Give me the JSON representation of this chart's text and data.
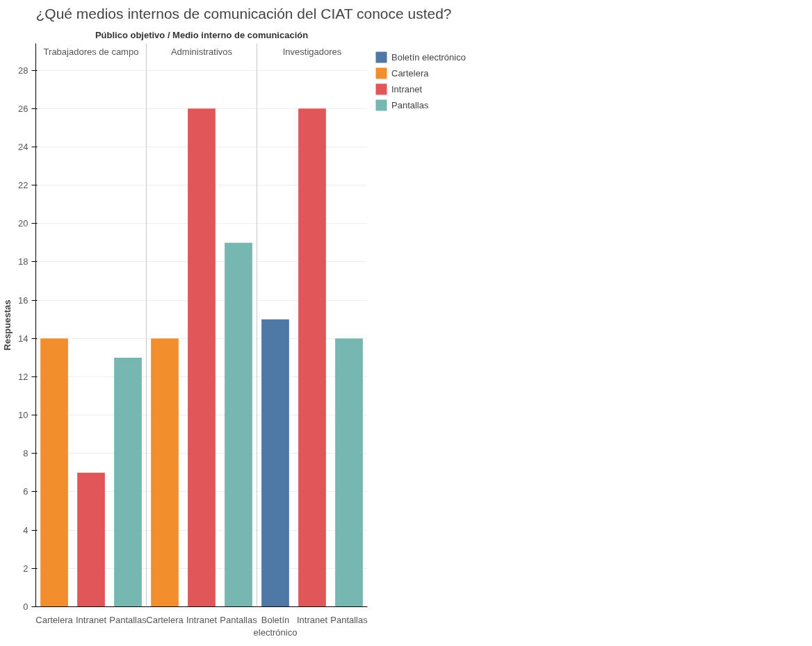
{
  "chart_data": {
    "type": "bar",
    "title": "¿Qué medios internos de comunicación del CIAT conoce usted?",
    "ylabel": "Respuestas",
    "categories": [
      "Cartelera",
      "Intranet",
      "Pantallas",
      "Cartelera",
      "Intranet",
      "Pantallas",
      "Boletín electrónico",
      "Intranet",
      "Pantallas"
    ],
    "series": [
      {
        "name": "Boletín electrónico",
        "color": "#4e79a7",
        "values": [
          null,
          null,
          null,
          null,
          null,
          null,
          15,
          null,
          null
        ]
      },
      {
        "name": "Cartelera",
        "color": "#f28e2b",
        "values": [
          14,
          null,
          null,
          14,
          null,
          null,
          null,
          null,
          null
        ]
      },
      {
        "name": "Intranet",
        "color": "#e15759",
        "values": [
          null,
          7,
          null,
          null,
          26,
          null,
          null,
          26,
          null
        ]
      },
      {
        "name": "Pantallas",
        "color": "#76b7b2",
        "values": [
          null,
          null,
          13,
          null,
          null,
          19,
          null,
          null,
          14
        ]
      }
    ],
    "annotations": [
      "Público objetivo / Medio interno de comunicación",
      "Trabajadores de campo",
      "Administrativos",
      "Investigadores"
    ],
    "ylim": [
      0,
      29.4
    ],
    "yticks": [
      0,
      2,
      4,
      6,
      8,
      10,
      12,
      14,
      16,
      18,
      20,
      22,
      24,
      26,
      28
    ],
    "grid": "y",
    "legend": "right"
  }
}
